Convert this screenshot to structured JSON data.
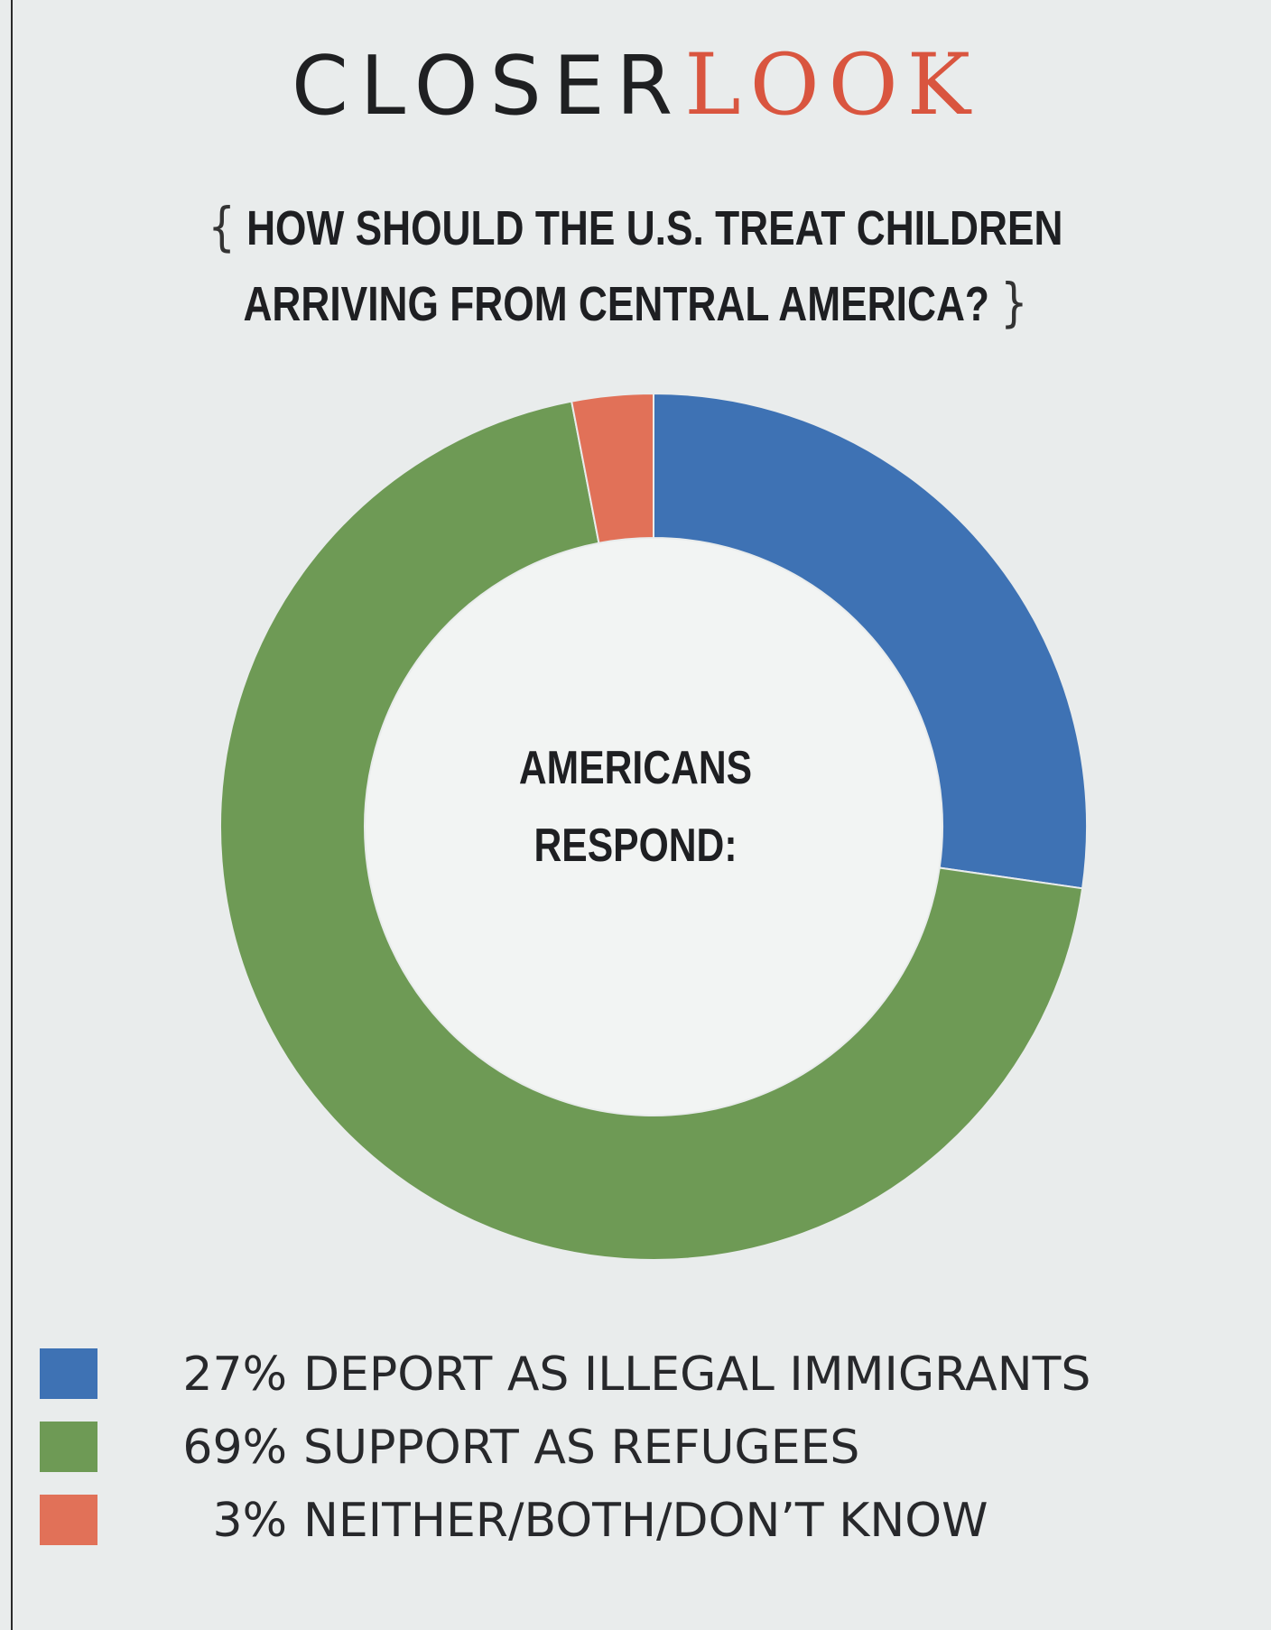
{
  "masthead": {
    "part1": "CLOSER",
    "part2": "LOOK",
    "part2_color": "#d9553f"
  },
  "question": {
    "open_brace": "{",
    "line1": "HOW SHOULD THE U.S. TREAT CHILDREN",
    "line2": "ARRIVING FROM CENTRAL AMERICA?",
    "close_brace": "}"
  },
  "center": {
    "line1": "AMERICANS",
    "line2": "RESPOND:"
  },
  "chart_data": {
    "type": "pie",
    "donut": true,
    "title": "HOW SHOULD THE U.S. TREAT CHILDREN ARRIVING FROM CENTRAL AMERICA?",
    "legend_position": "bottom",
    "slices": [
      {
        "pct_label": "27%",
        "value": 27,
        "label": "DEPORT AS ILLEGAL IMMIGRANTS",
        "color": "#3e72b4"
      },
      {
        "pct_label": "69%",
        "value": 69,
        "label": "SUPPORT AS REFUGEES",
        "color": "#6e9a55"
      },
      {
        "pct_label": "3%",
        "value": 3,
        "label": "NEITHER/BOTH/DON’T KNOW",
        "color": "#e17158"
      }
    ]
  }
}
